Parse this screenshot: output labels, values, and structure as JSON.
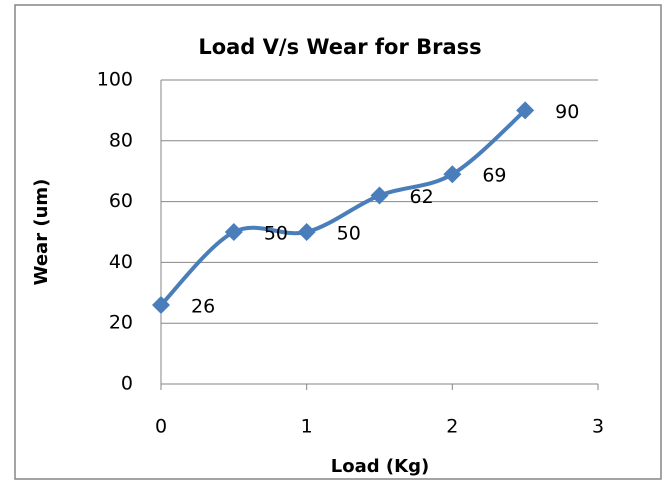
{
  "chart_data": {
    "type": "line",
    "title": "Load V/s Wear for Brass",
    "x_label": "Load (Kg)",
    "y_label": "Wear (um)",
    "x": [
      0,
      0.5,
      1,
      1.5,
      2,
      2.5
    ],
    "series": [
      {
        "name": "Wear",
        "color": "#4a7ebb",
        "values": [
          26,
          50,
          50,
          62,
          69,
          90
        ]
      }
    ],
    "xlim": [
      0,
      3
    ],
    "xticks": [
      0,
      1,
      2,
      3
    ],
    "ylim": [
      0,
      100
    ],
    "yticks": [
      0,
      20,
      40,
      60,
      80,
      100
    ],
    "grid": true,
    "smooth": true,
    "marker": "diamond",
    "data_labels": true
  }
}
